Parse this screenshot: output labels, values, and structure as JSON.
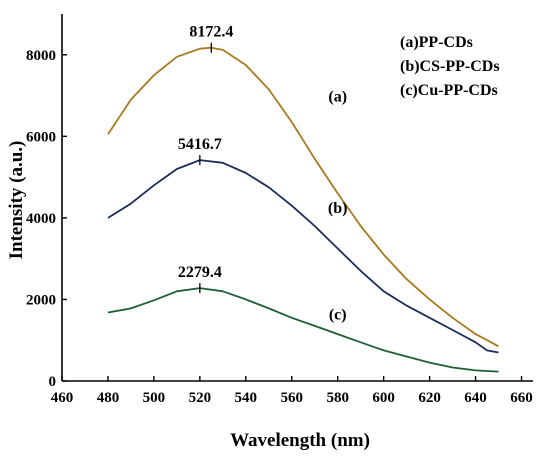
{
  "chart_data": {
    "type": "line",
    "xlabel": "Wavelength (nm)",
    "ylabel": "Intensity (a.u.)",
    "xlim": [
      460,
      665
    ],
    "ylim": [
      0,
      9000
    ],
    "xticks": [
      460,
      480,
      500,
      520,
      540,
      560,
      580,
      600,
      620,
      640,
      660
    ],
    "yticks": [
      0,
      2000,
      4000,
      6000,
      8000
    ],
    "legend": {
      "placement": "top-right",
      "entries": [
        "(a)PP-CDs",
        "(b)CS-PP-CDs",
        "(c)Cu-PP-CDs"
      ]
    },
    "series": [
      {
        "name": "(a)PP-CDs",
        "label": "(a)",
        "color": "#a87a1f",
        "x": [
          480,
          490,
          500,
          510,
          520,
          525,
          530,
          540,
          550,
          560,
          570,
          580,
          590,
          600,
          610,
          620,
          630,
          640,
          650
        ],
        "y": [
          6050,
          6900,
          7500,
          7950,
          8150,
          8172.4,
          8120,
          7750,
          7150,
          6350,
          5450,
          4600,
          3800,
          3100,
          2500,
          2000,
          1550,
          1150,
          850
        ],
        "peak": {
          "x": 525,
          "y": 8172.4,
          "label": "8172.4"
        }
      },
      {
        "name": "(b)CS-PP-CDs",
        "label": "(b)",
        "color": "#1c2d5a",
        "x": [
          480,
          490,
          500,
          510,
          520,
          530,
          540,
          550,
          560,
          570,
          580,
          590,
          600,
          610,
          620,
          630,
          640,
          645,
          650
        ],
        "y": [
          4000,
          4350,
          4800,
          5200,
          5416.7,
          5350,
          5100,
          4750,
          4300,
          3800,
          3250,
          2700,
          2200,
          1850,
          1550,
          1250,
          950,
          750,
          700
        ],
        "peak": {
          "x": 520,
          "y": 5416.7,
          "label": "5416.7"
        }
      },
      {
        "name": "(c)Cu-PP-CDs",
        "label": "(c)",
        "color": "#1f5e3a",
        "x": [
          480,
          490,
          500,
          510,
          520,
          530,
          540,
          550,
          560,
          570,
          580,
          590,
          600,
          610,
          620,
          630,
          640,
          650
        ],
        "y": [
          1680,
          1780,
          1980,
          2200,
          2279.4,
          2200,
          2000,
          1780,
          1550,
          1350,
          1150,
          950,
          750,
          600,
          450,
          330,
          260,
          230
        ],
        "peak": {
          "x": 520,
          "y": 2279.4,
          "label": "2279.4"
        }
      }
    ]
  }
}
